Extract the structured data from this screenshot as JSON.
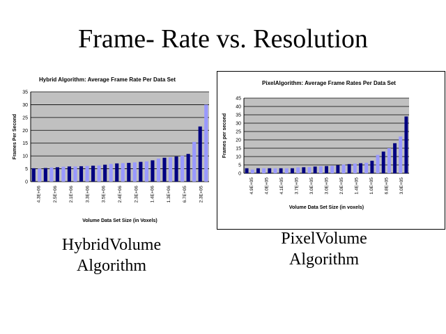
{
  "slide": {
    "title": "Frame- Rate vs. Resolution"
  },
  "captions": [
    {
      "line1": "HybridVolume",
      "line2": "Algorithm"
    },
    {
      "line1": "PixelVolume",
      "line2": "Algorithm"
    }
  ],
  "colors": {
    "plot_bg": "#c0c0c0",
    "bar_dark": "#000080",
    "bar_light": "#9999ff",
    "grid": "#000000"
  },
  "chart_data": [
    {
      "type": "bar",
      "title": "Hybrid Algorithm: Average Frame Rate Per Data Set",
      "xlabel": "Volume Data Set Size (in Voxels)",
      "ylabel": "Frames Per Second",
      "ylim": [
        0,
        35
      ],
      "yticks": [
        "0",
        "5",
        "10",
        "15",
        "20",
        "25",
        "30",
        "35"
      ],
      "grid": true,
      "legend": "none",
      "tick_labels": [
        "4.3E+06",
        "2.5E+06",
        "2.1E+06",
        "3.3E+06",
        "3.5E+06",
        "2.4E+06",
        "2.3E+06",
        "1.4E+06",
        "1.3E+06",
        "6.7E+05",
        "2.3E+05"
      ],
      "values": [
        5.2,
        5.1,
        5.3,
        5.5,
        5.6,
        5.8,
        5.9,
        5.9,
        6.0,
        6.1,
        6.2,
        6.3,
        6.6,
        6.9,
        7.1,
        7.2,
        7.3,
        7.5,
        7.7,
        7.9,
        8.3,
        9.0,
        9.3,
        9.5,
        9.8,
        10.1,
        10.8,
        15.5,
        21.5,
        30.0
      ]
    },
    {
      "type": "bar",
      "title": "PixelAlgorithm: Average Frame Rates Per Data Set",
      "xlabel": "Volume Data Set Size (in voxels)",
      "ylabel": "Frames per second",
      "ylim": [
        0,
        45
      ],
      "yticks": [
        "0",
        "5",
        "10",
        "15",
        "20",
        "25",
        "30",
        "35",
        "40",
        "45"
      ],
      "grid": true,
      "legend": "none",
      "tick_labels": [
        "4.9E+05",
        "4.0E+05",
        "4.1E+05",
        "3.7E+05",
        "3.0E+05",
        "3.0E+05",
        "2.0E+05",
        "1.4E+05",
        "1.0E+05",
        "6.8E+05",
        "3.0E+05"
      ],
      "values": [
        3.0,
        2.2,
        3.0,
        3.0,
        3.0,
        3.0,
        3.0,
        3.0,
        3.0,
        3.5,
        3.6,
        3.7,
        4.0,
        4.2,
        4.3,
        4.5,
        4.8,
        5.2,
        5.5,
        5.8,
        6.0,
        6.3,
        7.5,
        11.0,
        13.0,
        15.0,
        18.0,
        22.0,
        34.0
      ]
    }
  ]
}
